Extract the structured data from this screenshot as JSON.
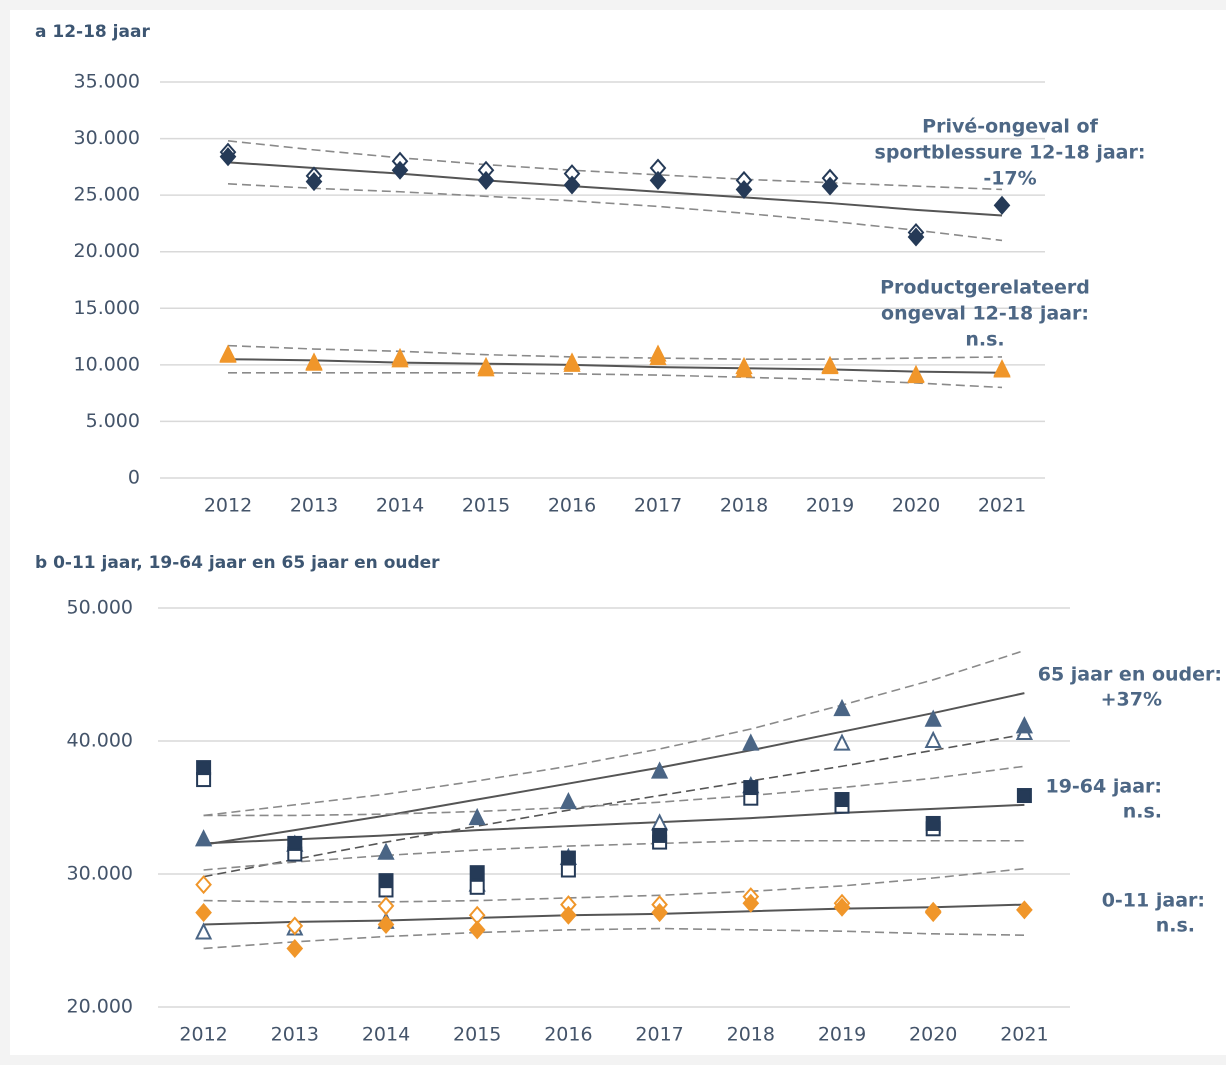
{
  "chart_data": [
    {
      "type": "line",
      "title": "a 12-18 jaar",
      "categories": [
        "2012",
        "2013",
        "2014",
        "2015",
        "2016",
        "2017",
        "2018",
        "2019",
        "2020",
        "2021"
      ],
      "ylim": [
        0,
        35000
      ],
      "yticks": [
        0,
        {
          "value": 5000,
          "label": "5.000"
        },
        {
          "value": 10000,
          "label": "10.000"
        },
        {
          "value": 15000,
          "label": "15.000"
        },
        {
          "value": 20000,
          "label": "20.000"
        },
        {
          "value": 25000,
          "label": "25.000"
        },
        {
          "value": 30000,
          "label": "30.000"
        },
        {
          "value": 35000,
          "label": "35.000"
        }
      ],
      "grid": true,
      "annotations": [
        {
          "lines": [
            "Privé-ongeval of",
            "sportblessure 12-18 jaar:",
            "-17%"
          ]
        },
        {
          "lines": [
            "Productgerelateerd",
            "ongeval 12-18 jaar:",
            "n.s."
          ]
        }
      ],
      "series": [
        {
          "color": "#8a8a8a",
          "marker": "none",
          "style": "dashed",
          "values": [
            29800,
            29000,
            28300,
            27700,
            27200,
            26800,
            26400,
            26100,
            25800,
            25500
          ]
        },
        {
          "color": "#8a8a8a",
          "marker": "none",
          "style": "dashed",
          "values": [
            26000,
            25600,
            25300,
            24900,
            24500,
            24000,
            23400,
            22700,
            21900,
            21000
          ]
        },
        {
          "color": "#555555",
          "marker": "none",
          "style": "solid",
          "values": [
            27900,
            27400,
            26900,
            26300,
            25800,
            25300,
            24800,
            24300,
            23700,
            23200
          ]
        },
        {
          "color": "#8a8a8a",
          "marker": "none",
          "style": "dashed",
          "values": [
            11700,
            11400,
            11200,
            10900,
            10700,
            10600,
            10500,
            10500,
            10600,
            10700
          ]
        },
        {
          "color": "#8a8a8a",
          "marker": "none",
          "style": "dashed",
          "values": [
            9300,
            9300,
            9300,
            9300,
            9200,
            9100,
            8900,
            8700,
            8400,
            8000
          ]
        },
        {
          "color": "#555555",
          "marker": "none",
          "style": "solid",
          "values": [
            10500,
            10400,
            10200,
            10100,
            10000,
            9800,
            9700,
            9600,
            9400,
            9300
          ]
        },
        {
          "color": "#253a57",
          "marker": "diamond",
          "filled": false,
          "values": [
            28800,
            26700,
            28000,
            27200,
            26900,
            27400,
            26300,
            26500,
            21700,
            null
          ]
        },
        {
          "color": "#253a57",
          "marker": "diamond",
          "filled": true,
          "values": [
            28400,
            26200,
            27200,
            26300,
            25900,
            26300,
            25500,
            25800,
            21300,
            24100
          ]
        },
        {
          "color": "#f0962a",
          "marker": "triangle",
          "filled": false,
          "values": [
            10900,
            10200,
            10600,
            9800,
            10200,
            10900,
            9800,
            9900,
            9100,
            9600
          ]
        },
        {
          "color": "#f0962a",
          "marker": "triangle",
          "filled": true,
          "values": [
            10800,
            10100,
            10400,
            9600,
            10000,
            10600,
            9500,
            9800,
            9000,
            9500
          ]
        }
      ]
    },
    {
      "type": "line",
      "title": "b 0-11 jaar, 19-64 jaar en 65 jaar en ouder",
      "categories": [
        "2012",
        "2013",
        "2014",
        "2015",
        "2016",
        "2017",
        "2018",
        "2019",
        "2020",
        "2021"
      ],
      "ylim": [
        20000,
        50000
      ],
      "yticks": [
        {
          "value": 20000,
          "label": "20.000"
        },
        {
          "value": 30000,
          "label": "30.000"
        },
        {
          "value": 40000,
          "label": "40.000"
        },
        {
          "value": 50000,
          "label": "50.000"
        }
      ],
      "grid": true,
      "annotations": [
        {
          "lines": [
            "65 jaar en ouder:",
            "+37%"
          ]
        },
        {
          "lines": [
            "19-64 jaar:",
            "n.s."
          ]
        },
        {
          "lines": [
            "0-11 jaar:",
            "n.s."
          ]
        }
      ],
      "series": [
        {
          "color": "#8a8a8a",
          "marker": "none",
          "style": "dashed",
          "values": [
            34400,
            35200,
            36000,
            37000,
            38100,
            39400,
            40900,
            42700,
            44600,
            46800
          ]
        },
        {
          "color": "#555555",
          "marker": "none",
          "style": "dashed",
          "values": [
            29800,
            31100,
            32400,
            33600,
            34800,
            35900,
            37000,
            38100,
            39300,
            40500
          ]
        },
        {
          "color": "#555555",
          "marker": "none",
          "style": "solid",
          "values": [
            32200,
            33300,
            34400,
            35600,
            36800,
            38000,
            39300,
            40700,
            42100,
            43600
          ]
        },
        {
          "color": "#8a8a8a",
          "marker": "none",
          "style": "dashed",
          "values": [
            34400,
            34400,
            34500,
            34700,
            35000,
            35400,
            35900,
            36500,
            37200,
            38100
          ]
        },
        {
          "color": "#8a8a8a",
          "marker": "none",
          "style": "dashed",
          "values": [
            30300,
            30900,
            31400,
            31800,
            32100,
            32300,
            32500,
            32500,
            32500,
            32500
          ]
        },
        {
          "color": "#555555",
          "marker": "none",
          "style": "solid",
          "values": [
            32300,
            32600,
            32900,
            33300,
            33600,
            33900,
            34200,
            34600,
            34900,
            35200
          ]
        },
        {
          "color": "#8a8a8a",
          "marker": "none",
          "style": "dashed",
          "values": [
            28000,
            27900,
            27900,
            28000,
            28200,
            28400,
            28700,
            29100,
            29700,
            30400
          ]
        },
        {
          "color": "#8a8a8a",
          "marker": "none",
          "style": "dashed",
          "values": [
            24400,
            24900,
            25300,
            25600,
            25800,
            25900,
            25800,
            25700,
            25500,
            25400
          ]
        },
        {
          "color": "#555555",
          "marker": "none",
          "style": "solid",
          "values": [
            26200,
            26400,
            26500,
            26700,
            26900,
            27000,
            27200,
            27400,
            27500,
            27700
          ]
        },
        {
          "color": "#4a6585",
          "marker": "triangle",
          "filled": false,
          "values": [
            25600,
            25900,
            26400,
            29200,
            31200,
            33800,
            36600,
            39800,
            40000,
            40600
          ]
        },
        {
          "color": "#4a6585",
          "marker": "triangle",
          "filled": true,
          "values": [
            32600,
            32200,
            31600,
            34200,
            35400,
            37700,
            39800,
            42400,
            41600,
            41100
          ]
        },
        {
          "color": "#253a57",
          "marker": "square",
          "filled": false,
          "values": [
            37100,
            31500,
            28800,
            29000,
            30300,
            32400,
            35700,
            35100,
            33400,
            null
          ]
        },
        {
          "color": "#253a57",
          "marker": "square",
          "filled": true,
          "values": [
            38000,
            32300,
            29500,
            30100,
            31200,
            32900,
            36500,
            35600,
            33800,
            35900
          ]
        },
        {
          "color": "#f0962a",
          "marker": "diamond",
          "filled": false,
          "values": [
            29200,
            26100,
            27600,
            26900,
            27700,
            27700,
            28300,
            27800,
            27200,
            null
          ]
        },
        {
          "color": "#f0962a",
          "marker": "diamond",
          "filled": true,
          "values": [
            27100,
            24400,
            26200,
            25800,
            26900,
            27100,
            27800,
            27500,
            27100,
            27300
          ]
        }
      ]
    }
  ]
}
